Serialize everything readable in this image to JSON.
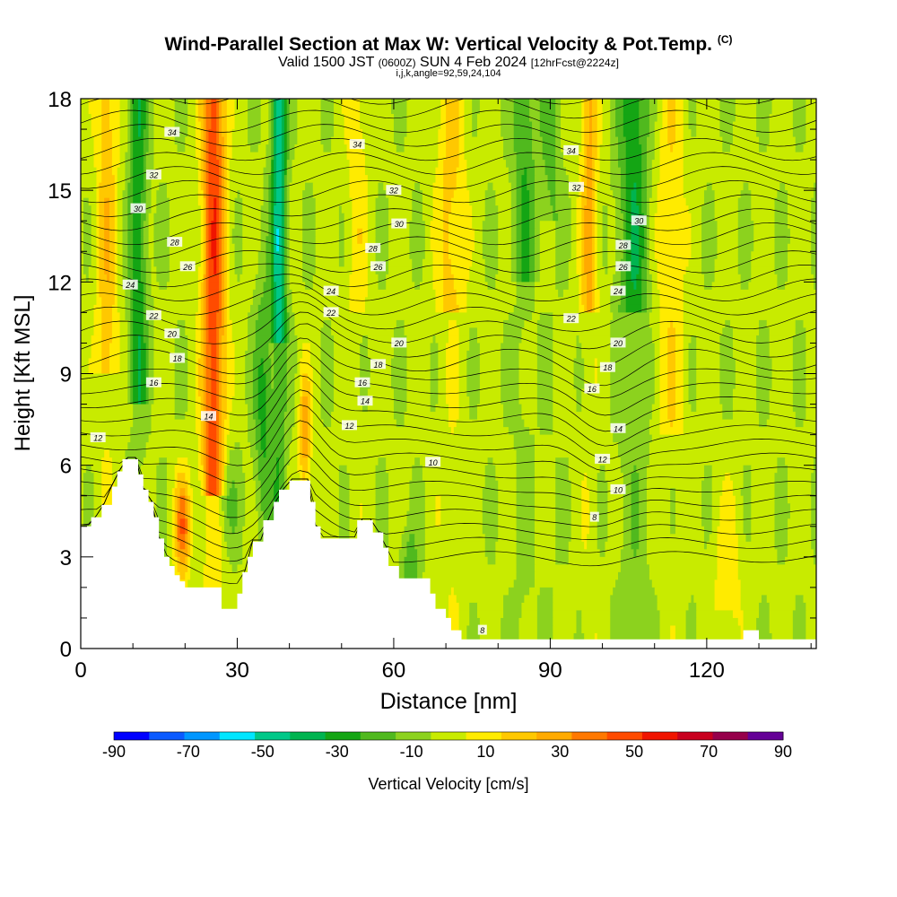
{
  "header": {
    "title": "Wind-Parallel Section at Max W: Vertical Velocity & Pot.Temp.",
    "copyright": "(C)",
    "valid_prefix": "Valid 1500 JST",
    "valid_zulu": "(0600Z)",
    "valid_date": "SUN 4 Feb 2024",
    "forecast": "[12hrFcst@2224z]",
    "params": "i,j,k,angle=92,59,24,104"
  },
  "chart_data": {
    "type": "heatmap",
    "xlabel": "Distance [nm]",
    "ylabel": "Height [Kft MSL]",
    "xlim": [
      0,
      141
    ],
    "ylim": [
      0,
      18
    ],
    "x_ticks": [
      "0",
      "30",
      "60",
      "90",
      "120"
    ],
    "x_tick_values": [
      0,
      30,
      60,
      90,
      120
    ],
    "y_ticks": [
      "0",
      "3",
      "6",
      "9",
      "12",
      "15",
      "18"
    ],
    "y_tick_values": [
      0,
      3,
      6,
      9,
      12,
      15,
      18
    ],
    "colorbar": {
      "label": "Vertical Velocity [cm/s]",
      "tick_labels": [
        "-90",
        "-70",
        "-50",
        "-30",
        "-10",
        "10",
        "30",
        "50",
        "70",
        "90"
      ],
      "tick_values": [
        -90,
        -70,
        -50,
        -30,
        -10,
        10,
        30,
        50,
        70,
        90
      ],
      "bins": [
        -90,
        -80,
        -70,
        -60,
        -50,
        -40,
        -30,
        -20,
        -10,
        0,
        10,
        20,
        30,
        40,
        50,
        60,
        70,
        80,
        90
      ],
      "colors": [
        "#0000ff",
        "#0a5aff",
        "#0096ff",
        "#00e6ff",
        "#00c888",
        "#00b450",
        "#14a514",
        "#50b91e",
        "#8cd21e",
        "#c8eb00",
        "#ffeb00",
        "#ffc800",
        "#ffaa00",
        "#ff7800",
        "#ff4b00",
        "#f01400",
        "#c8001e",
        "#96004b",
        "#640096"
      ]
    },
    "contour_field": "Potential Temperature",
    "contour_labels": [
      {
        "text": "34",
        "x": 17.5,
        "y": 16.9
      },
      {
        "text": "34",
        "x": 53,
        "y": 16.5
      },
      {
        "text": "34",
        "x": 94,
        "y": 16.3
      },
      {
        "text": "32",
        "x": 14,
        "y": 15.5
      },
      {
        "text": "32",
        "x": 60,
        "y": 15.0
      },
      {
        "text": "32",
        "x": 95,
        "y": 15.1
      },
      {
        "text": "30",
        "x": 11,
        "y": 14.4
      },
      {
        "text": "30",
        "x": 61,
        "y": 13.9
      },
      {
        "text": "30",
        "x": 107,
        "y": 14.0
      },
      {
        "text": "28",
        "x": 18,
        "y": 13.3
      },
      {
        "text": "28",
        "x": 56,
        "y": 13.1
      },
      {
        "text": "28",
        "x": 104,
        "y": 13.2
      },
      {
        "text": "26",
        "x": 20.5,
        "y": 12.5
      },
      {
        "text": "26",
        "x": 57,
        "y": 12.5
      },
      {
        "text": "26",
        "x": 104,
        "y": 12.5
      },
      {
        "text": "24",
        "x": 9.5,
        "y": 11.9
      },
      {
        "text": "24",
        "x": 48,
        "y": 11.7
      },
      {
        "text": "24",
        "x": 103,
        "y": 11.7
      },
      {
        "text": "22",
        "x": 14,
        "y": 10.9
      },
      {
        "text": "22",
        "x": 48,
        "y": 11.0
      },
      {
        "text": "22",
        "x": 94,
        "y": 10.8
      },
      {
        "text": "20",
        "x": 17.5,
        "y": 10.3
      },
      {
        "text": "20",
        "x": 61,
        "y": 10.0
      },
      {
        "text": "20",
        "x": 103,
        "y": 10.0
      },
      {
        "text": "18",
        "x": 18.5,
        "y": 9.5
      },
      {
        "text": "18",
        "x": 57,
        "y": 9.3
      },
      {
        "text": "18",
        "x": 101,
        "y": 9.2
      },
      {
        "text": "16",
        "x": 14,
        "y": 8.7
      },
      {
        "text": "16",
        "x": 54,
        "y": 8.7
      },
      {
        "text": "16",
        "x": 98,
        "y": 8.5
      },
      {
        "text": "14",
        "x": 24.5,
        "y": 7.6
      },
      {
        "text": "14",
        "x": 54.5,
        "y": 8.1
      },
      {
        "text": "14",
        "x": 103,
        "y": 7.2
      },
      {
        "text": "12",
        "x": 3.3,
        "y": 6.9
      },
      {
        "text": "12",
        "x": 51.5,
        "y": 7.3
      },
      {
        "text": "12",
        "x": 100,
        "y": 6.2
      },
      {
        "text": "10",
        "x": 67.5,
        "y": 6.1
      },
      {
        "text": "10",
        "x": 103,
        "y": 5.2
      },
      {
        "text": "8",
        "x": 98.5,
        "y": 4.3
      },
      {
        "text": "8",
        "x": 77,
        "y": 0.6
      }
    ]
  }
}
